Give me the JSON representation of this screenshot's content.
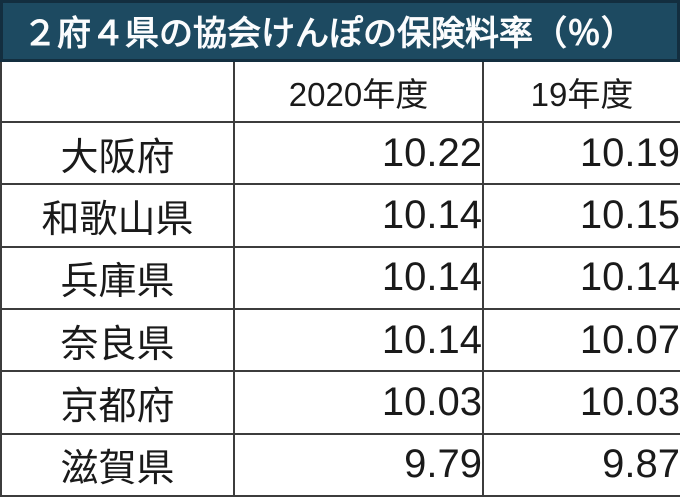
{
  "title": "２府４県の協会けんぽの保険料率（％）",
  "colors": {
    "title_bg": "#1d4a61",
    "title_border": "#132e3f",
    "title_text": "#fbfcfd",
    "grid_line": "#3c3c3c",
    "cell_text": "#1a1a1a",
    "table_bg": "#ffffff"
  },
  "table": {
    "columns": [
      "",
      "2020年度",
      "19年度"
    ],
    "rows": [
      {
        "prefecture": "大阪府",
        "fy2020": "10.22",
        "fy2019": "10.19"
      },
      {
        "prefecture": "和歌山県",
        "fy2020": "10.14",
        "fy2019": "10.15"
      },
      {
        "prefecture": "兵庫県",
        "fy2020": "10.14",
        "fy2019": "10.14"
      },
      {
        "prefecture": "奈良県",
        "fy2020": "10.14",
        "fy2019": "10.07"
      },
      {
        "prefecture": "京都府",
        "fy2020": "10.03",
        "fy2019": "10.03"
      },
      {
        "prefecture": "滋賀県",
        "fy2020": "9.79",
        "fy2019": "9.87"
      }
    ]
  },
  "chart_data": {
    "type": "table",
    "title": "２府４県の協会けんぽの保険料率（％）",
    "columns": [
      "",
      "2020年度",
      "19年度"
    ],
    "rows": [
      [
        "大阪府",
        10.22,
        10.19
      ],
      [
        "和歌山県",
        10.14,
        10.15
      ],
      [
        "兵庫県",
        10.14,
        10.14
      ],
      [
        "奈良県",
        10.14,
        10.07
      ],
      [
        "京都府",
        10.03,
        10.03
      ],
      [
        "滋賀県",
        9.79,
        9.87
      ]
    ]
  }
}
